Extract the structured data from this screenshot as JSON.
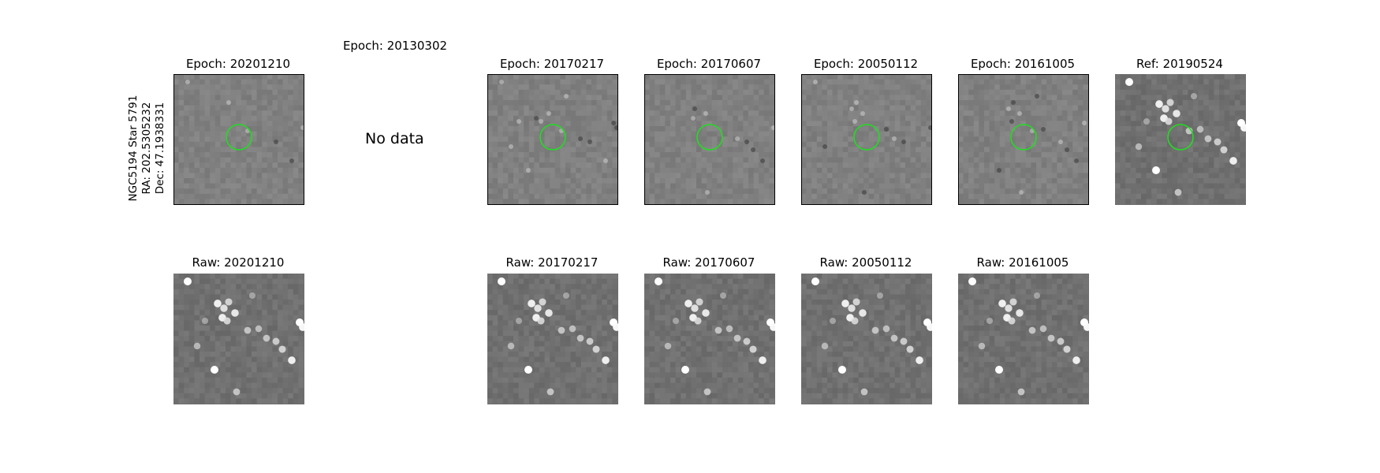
{
  "target": {
    "name": "NGC5194 Star 5791",
    "ra": "RA: 202.5305232",
    "dec": "Dec: 47.1938331"
  },
  "no_data_text": "No data",
  "colors": {
    "marker_circle": "#22dd22",
    "diff_background": "#808080",
    "raw_background": "#6e6e6e"
  },
  "epoch_row": [
    {
      "title": "Epoch: 20201210",
      "has_data": true
    },
    {
      "title": "Epoch: 20130302",
      "has_data": false
    },
    {
      "title": "Epoch: 20170217",
      "has_data": true
    },
    {
      "title": "Epoch: 20170607",
      "has_data": true
    },
    {
      "title": "Epoch: 20050112",
      "has_data": true
    },
    {
      "title": "Epoch: 20161005",
      "has_data": true
    },
    {
      "title": "Ref: 20190524",
      "has_data": true
    }
  ],
  "raw_row": [
    {
      "title": "Raw: 20201210"
    },
    {
      "title": "Raw: 20170217"
    },
    {
      "title": "Raw: 20170607"
    },
    {
      "title": "Raw: 20050112"
    },
    {
      "title": "Raw: 20161005"
    }
  ]
}
